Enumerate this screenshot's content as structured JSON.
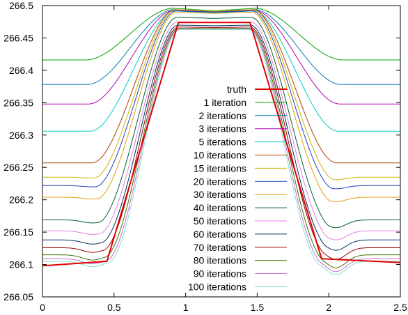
{
  "chart_data": {
    "type": "line",
    "title": "",
    "xlabel": "",
    "ylabel": "",
    "xlim": [
      0,
      2.5
    ],
    "ylim": [
      266.05,
      266.5
    ],
    "xticks": [
      0,
      0.5,
      1,
      1.5,
      2,
      2.5
    ],
    "xtick_labels": [
      "0",
      "0.5",
      "1",
      "1.5",
      "2",
      "2.5"
    ],
    "yticks": [
      266.05,
      266.1,
      266.15,
      266.2,
      266.25,
      266.3,
      266.35,
      266.4,
      266.45,
      266.5
    ],
    "ytick_labels": [
      "266.05",
      "266.1",
      "266.15",
      "266.2",
      "266.25",
      "266.3",
      "266.35",
      "266.4",
      "266.45",
      "266.5"
    ],
    "grid": false,
    "legend_position": "center",
    "legend": [
      "truth",
      "1 iteration",
      "2 iterations",
      "3 iterations",
      "5 iterations",
      "10 iterations",
      "15 iterations",
      "20 iterations",
      "30 iterations",
      "40 iterations",
      "50 iterations",
      "60 iterations",
      "70 iterations",
      "80 iterations",
      "90 iterations",
      "100 iterations"
    ],
    "truth": {
      "name": "truth",
      "color": "#e00000",
      "x": [
        0,
        0.45,
        0.95,
        1.45,
        1.95,
        2.5
      ],
      "y": [
        266.098,
        266.105,
        266.474,
        266.474,
        266.109,
        266.103
      ]
    },
    "series": [
      {
        "name": "1 iteration",
        "color": "#00a000",
        "base": 266.416,
        "peak": 266.496,
        "dip": 0
      },
      {
        "name": "2 iterations",
        "color": "#0080b0",
        "base": 266.378,
        "peak": 266.494,
        "dip": 0
      },
      {
        "name": "3 iterations",
        "color": "#b000b0",
        "base": 266.348,
        "peak": 266.493,
        "dip": 0
      },
      {
        "name": "5 iterations",
        "color": "#00c8c8",
        "base": 266.306,
        "peak": 266.492,
        "dip": 0
      },
      {
        "name": "10 iterations",
        "color": "#b04000",
        "base": 266.257,
        "peak": 266.494,
        "dip": 0
      },
      {
        "name": "15 iterations",
        "color": "#d0b000",
        "base": 266.235,
        "peak": 266.494,
        "dip": 0.004
      },
      {
        "name": "20 iterations",
        "color": "#2040c0",
        "base": 266.222,
        "peak": 266.492,
        "dip": 0.005
      },
      {
        "name": "30 iterations",
        "color": "#e0a000",
        "base": 266.204,
        "peak": 266.49,
        "dip": 0.007
      },
      {
        "name": "40 iterations",
        "color": "#006030",
        "base": 266.169,
        "peak": 266.482,
        "dip": 0.012
      },
      {
        "name": "50 iterations",
        "color": "#e080e0",
        "base": 266.152,
        "peak": 266.475,
        "dip": 0.014
      },
      {
        "name": "60 iterations",
        "color": "#003060",
        "base": 266.138,
        "peak": 266.47,
        "dip": 0.016
      },
      {
        "name": "70 iterations",
        "color": "#900000",
        "base": 266.126,
        "peak": 266.467,
        "dip": 0.018
      },
      {
        "name": "80 iterations",
        "color": "#407000",
        "base": 266.115,
        "peak": 266.465,
        "dip": 0.02
      },
      {
        "name": "90 iterations",
        "color": "#c070d0",
        "base": 266.109,
        "peak": 266.464,
        "dip": 0.02
      },
      {
        "name": "100 iterations",
        "color": "#80e0d0",
        "base": 266.105,
        "peak": 266.463,
        "dip": 0.021
      }
    ]
  }
}
